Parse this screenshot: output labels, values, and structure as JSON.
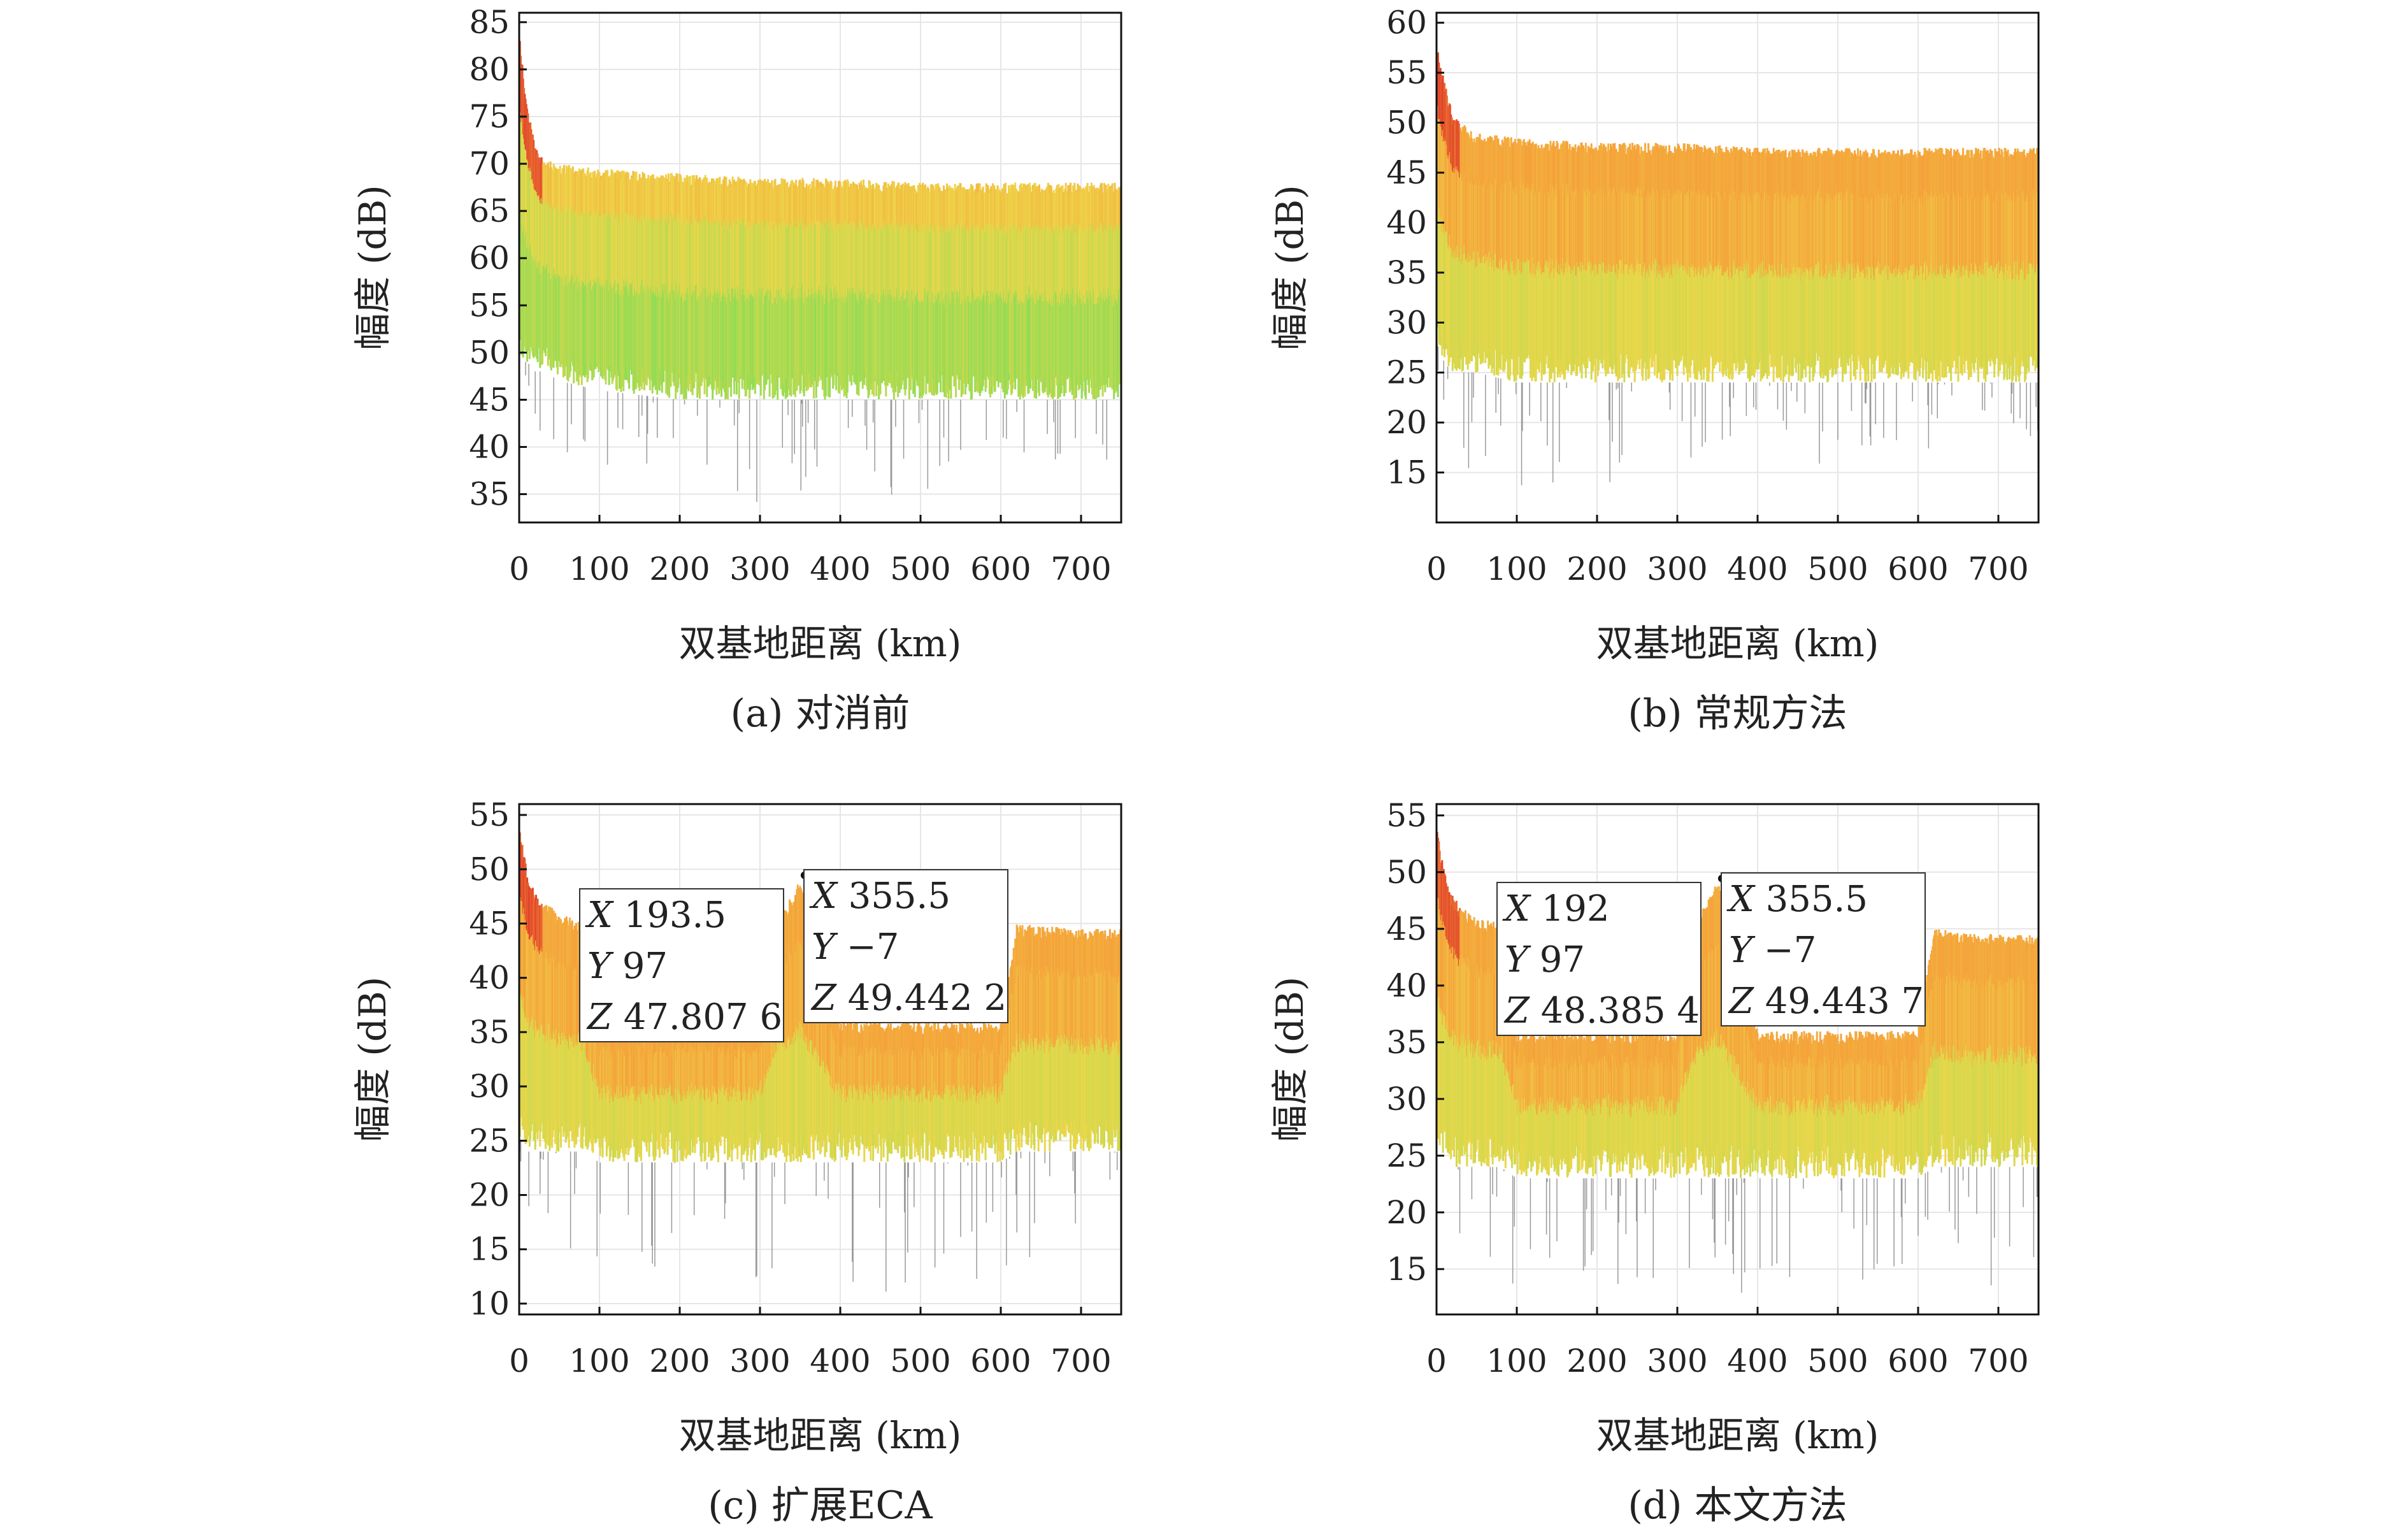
{
  "chart_data": [
    {
      "type": "area",
      "panel": "a",
      "caption": "(a) 对消前",
      "xlabel": "双基地距离 (km)",
      "ylabel": "幅度 (dB)",
      "xlim": [
        0,
        750
      ],
      "ylim": [
        32,
        86
      ],
      "xticks": [
        "0",
        "100",
        "200",
        "300",
        "400",
        "500",
        "600",
        "700"
      ],
      "yticks": [
        "35",
        "40",
        "45",
        "50",
        "55",
        "60",
        "65",
        "70",
        "75",
        "80",
        "85"
      ],
      "grid": true,
      "series": [
        {
          "x": [
            0,
            5,
            10,
            20,
            30,
            50,
            100,
            200,
            300,
            400,
            500,
            600,
            700,
            750
          ],
          "upper": [
            84,
            80,
            76,
            72,
            70.5,
            70,
            69.5,
            69,
            68.5,
            68.5,
            68,
            68,
            68,
            68
          ],
          "typical_lower": [
            50,
            49,
            49,
            48,
            48,
            47,
            46,
            45,
            45,
            45,
            45,
            45,
            45,
            45
          ],
          "min": [
            47,
            45,
            44,
            42,
            40,
            38,
            37,
            36,
            33,
            36,
            34,
            36,
            38,
            38
          ]
        }
      ],
      "annotations": []
    },
    {
      "type": "area",
      "panel": "b",
      "caption": "(b) 常规方法",
      "xlabel": "双基地距离 (km)",
      "ylabel": "幅度 (dB)",
      "xlim": [
        0,
        750
      ],
      "ylim": [
        10,
        61
      ],
      "xticks": [
        "0",
        "100",
        "200",
        "300",
        "400",
        "500",
        "600",
        "700"
      ],
      "yticks": [
        "15",
        "20",
        "25",
        "30",
        "35",
        "40",
        "45",
        "50",
        "55",
        "60"
      ],
      "grid": true,
      "series": [
        {
          "x": [
            0,
            5,
            10,
            20,
            30,
            50,
            100,
            200,
            300,
            400,
            500,
            600,
            700,
            750
          ],
          "upper": [
            58,
            56,
            54,
            51,
            50,
            49,
            48.5,
            48,
            48,
            47.5,
            47.5,
            47.5,
            47.5,
            47.5
          ],
          "typical_lower": [
            28,
            27,
            26,
            25,
            25,
            25,
            24,
            24,
            24,
            24,
            24,
            24,
            24,
            24
          ],
          "min": [
            24,
            22,
            20,
            18,
            16,
            14,
            12,
            13,
            15,
            17,
            15,
            16,
            18,
            18
          ]
        }
      ],
      "annotations": []
    },
    {
      "type": "area",
      "panel": "c",
      "caption": "(c) 扩展ECA",
      "xlabel": "双基地距离 (km)",
      "ylabel": "幅度 (dB)",
      "xlim": [
        0,
        750
      ],
      "ylim": [
        9,
        56
      ],
      "xticks": [
        "0",
        "100",
        "200",
        "300",
        "400",
        "500",
        "600",
        "700"
      ],
      "yticks": [
        "10",
        "15",
        "20",
        "25",
        "30",
        "35",
        "40",
        "45",
        "50",
        "55"
      ],
      "grid": true,
      "series": [
        {
          "x": [
            0,
            5,
            10,
            20,
            30,
            50,
            80,
            100,
            180,
            200,
            300,
            320,
            350,
            400,
            500,
            600,
            620,
            700,
            750
          ],
          "upper": [
            54,
            52,
            50,
            48,
            47,
            46,
            45,
            36,
            36,
            36,
            36,
            45,
            49,
            36,
            36,
            36,
            45,
            44.5,
            44.5
          ],
          "typical_lower": [
            25,
            25,
            24,
            24,
            24,
            24,
            24,
            23,
            23,
            23,
            23,
            23,
            23,
            23,
            23,
            23,
            24,
            24,
            24
          ],
          "min": [
            22,
            20,
            18,
            16,
            15,
            14,
            13,
            14,
            13,
            13,
            12,
            11,
            12,
            12,
            10,
            13,
            14,
            14,
            14
          ]
        }
      ],
      "annotations": [
        {
          "x": 193.5,
          "y": 97,
          "z": 47.8076,
          "lines": [
            "X 193.5",
            "Y 97",
            "Z 47.807 6"
          ]
        },
        {
          "x": 355.5,
          "y": -7,
          "z": 49.4422,
          "lines": [
            "X 355.5",
            "Y −7",
            "Z 49.442 2"
          ]
        }
      ]
    },
    {
      "type": "area",
      "panel": "d",
      "caption": "(d) 本文方法",
      "xlabel": "双基地距离 (km)",
      "ylabel": "幅度 (dB)",
      "xlim": [
        0,
        750
      ],
      "ylim": [
        11,
        56
      ],
      "xticks": [
        "0",
        "100",
        "200",
        "300",
        "400",
        "500",
        "600",
        "700"
      ],
      "yticks": [
        "15",
        "20",
        "25",
        "30",
        "35",
        "40",
        "45",
        "50",
        "55"
      ],
      "grid": true,
      "series": [
        {
          "x": [
            0,
            5,
            10,
            20,
            30,
            50,
            80,
            100,
            180,
            200,
            300,
            320,
            350,
            400,
            500,
            600,
            620,
            700,
            750
          ],
          "upper": [
            54,
            52,
            50,
            48,
            47,
            46,
            45.5,
            36,
            36,
            36,
            36,
            45,
            49.5,
            36,
            36,
            36,
            45,
            44.5,
            44.5
          ],
          "typical_lower": [
            25,
            25,
            25,
            24,
            24,
            24,
            24,
            23,
            23,
            23,
            23,
            23,
            23,
            23,
            23,
            23,
            24,
            24,
            24
          ],
          "min": [
            22,
            20,
            18,
            16,
            15,
            14,
            13,
            12,
            13,
            13,
            14,
            13,
            14,
            12,
            13,
            12,
            13,
            13,
            13
          ]
        }
      ],
      "annotations": [
        {
          "x": 192,
          "y": 97,
          "z": 48.3854,
          "lines": [
            "X 192",
            "Y 97",
            "Z 48.385 4"
          ]
        },
        {
          "x": 355.5,
          "y": -7,
          "z": 49.4437,
          "lines": [
            "X 355.5",
            "Y −7",
            "Z 49.443 7"
          ]
        }
      ]
    }
  ],
  "colors": {
    "red": "#e0402a",
    "orange": "#f5a03a",
    "yellow": "#eed64a",
    "green": "#8fdc55",
    "grey": "#999999"
  }
}
